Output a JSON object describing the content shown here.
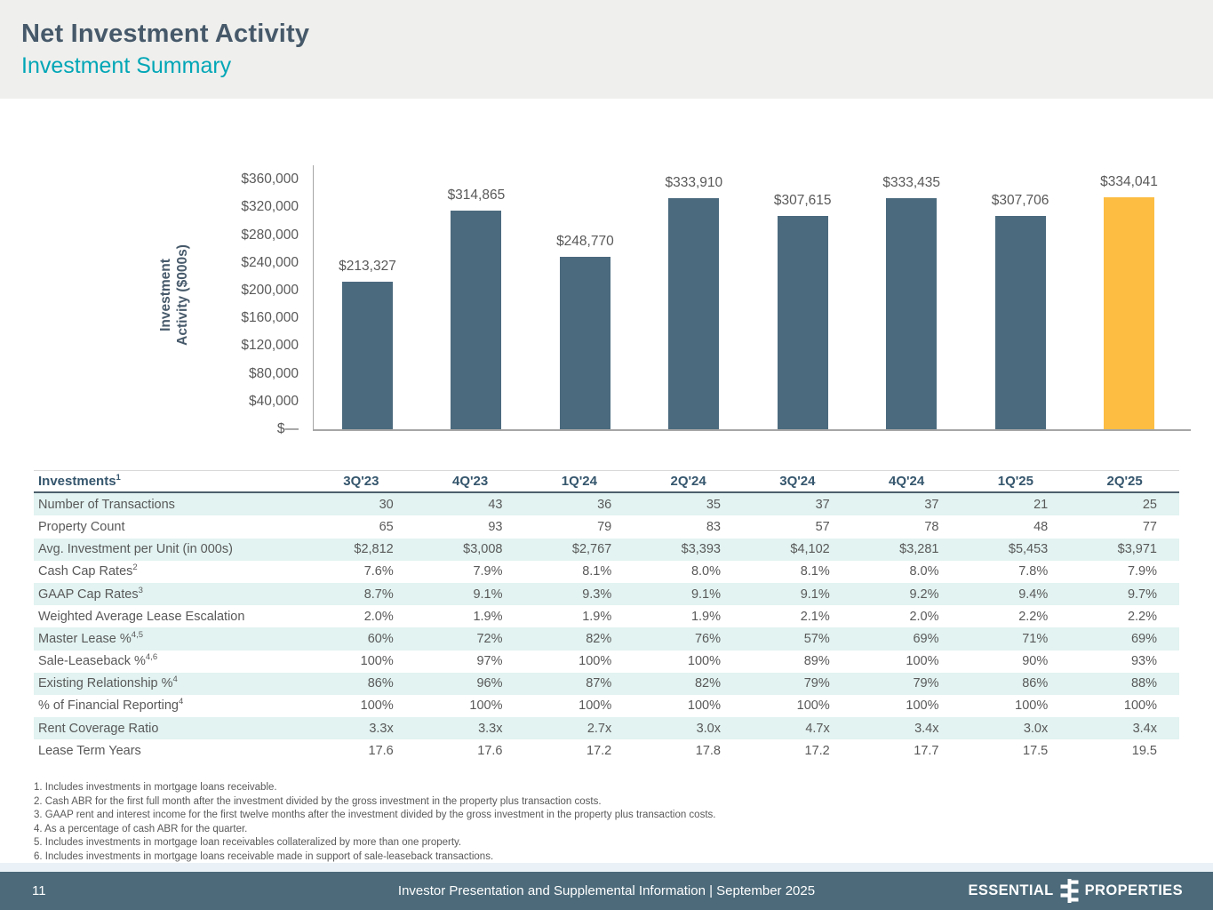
{
  "page": {
    "title": "Net Investment Activity",
    "subtitle": "Investment Summary",
    "page_number": "11",
    "footer_text": "Investor Presentation and Supplemental Information |  September 2025",
    "logo_left": "ESSENTIAL",
    "logo_right": "PROPERTIES"
  },
  "chart_data": {
    "type": "bar",
    "title": "",
    "xlabel": "",
    "ylabel": "Investment\nActivity ($000s)",
    "categories": [
      "3Q'23",
      "4Q'23",
      "1Q'24",
      "2Q'24",
      "3Q'24",
      "4Q'24",
      "1Q'25",
      "2Q'25"
    ],
    "values": [
      213327,
      314865,
      248770,
      333910,
      307615,
      333435,
      307706,
      334041
    ],
    "data_labels": [
      "$213,327",
      "$314,865",
      "$248,770",
      "$333,910",
      "$307,615",
      "$333,435",
      "$307,706",
      "$334,041"
    ],
    "highlight_index": 7,
    "ylim": [
      0,
      360000
    ],
    "ytick_step": 40000,
    "ytick_labels": [
      "$—",
      "$40,000",
      "$80,000",
      "$120,000",
      "$160,000",
      "$200,000",
      "$240,000",
      "$280,000",
      "$320,000",
      "$360,000"
    ],
    "bar_color": "#4b6a7e",
    "highlight_color": "#fcbd42",
    "grid": false,
    "legend": false
  },
  "table": {
    "header_label": "Investments",
    "header_sup": "1",
    "columns": [
      "3Q'23",
      "4Q'23",
      "1Q'24",
      "2Q'24",
      "3Q'24",
      "4Q'24",
      "1Q'25",
      "2Q'25"
    ],
    "rows": [
      {
        "label": "Number of Transactions",
        "sup": "",
        "values": [
          "30",
          "43",
          "36",
          "35",
          "37",
          "37",
          "21",
          "25"
        ]
      },
      {
        "label": "Property Count",
        "sup": "",
        "values": [
          "65",
          "93",
          "79",
          "83",
          "57",
          "78",
          "48",
          "77"
        ]
      },
      {
        "label": "Avg. Investment per Unit (in 000s)",
        "sup": "",
        "values": [
          "$2,812",
          "$3,008",
          "$2,767",
          "$3,393",
          "$4,102",
          "$3,281",
          "$5,453",
          "$3,971"
        ]
      },
      {
        "label": "Cash Cap Rates",
        "sup": "2",
        "values": [
          "7.6%",
          "7.9%",
          "8.1%",
          "8.0%",
          "8.1%",
          "8.0%",
          "7.8%",
          "7.9%"
        ]
      },
      {
        "label": "GAAP Cap Rates",
        "sup": "3",
        "values": [
          "8.7%",
          "9.1%",
          "9.3%",
          "9.1%",
          "9.1%",
          "9.2%",
          "9.4%",
          "9.7%"
        ]
      },
      {
        "label": "Weighted Average Lease Escalation",
        "sup": "",
        "values": [
          "2.0%",
          "1.9%",
          "1.9%",
          "1.9%",
          "2.1%",
          "2.0%",
          "2.2%",
          "2.2%"
        ]
      },
      {
        "label": "Master Lease %",
        "sup": "4,5",
        "values": [
          "60%",
          "72%",
          "82%",
          "76%",
          "57%",
          "69%",
          "71%",
          "69%"
        ]
      },
      {
        "label": "Sale-Leaseback %",
        "sup": "4,6",
        "values": [
          "100%",
          "97%",
          "100%",
          "100%",
          "89%",
          "100%",
          "90%",
          "93%"
        ]
      },
      {
        "label": "Existing Relationship %",
        "sup": "4",
        "values": [
          "86%",
          "96%",
          "87%",
          "82%",
          "79%",
          "79%",
          "86%",
          "88%"
        ]
      },
      {
        "label": "% of Financial Reporting",
        "sup": "4",
        "values": [
          "100%",
          "100%",
          "100%",
          "100%",
          "100%",
          "100%",
          "100%",
          "100%"
        ]
      },
      {
        "label": "Rent Coverage Ratio",
        "sup": "",
        "values": [
          "3.3x",
          "3.3x",
          "2.7x",
          "3.0x",
          "4.7x",
          "3.4x",
          "3.0x",
          "3.4x"
        ]
      },
      {
        "label": "Lease Term Years",
        "sup": "",
        "values": [
          "17.6",
          "17.6",
          "17.2",
          "17.8",
          "17.2",
          "17.7",
          "17.5",
          "19.5"
        ]
      }
    ]
  },
  "footnotes": [
    "1. Includes investments in mortgage loans receivable.",
    "2. Cash ABR for the first full month after the investment divided by the gross investment in the property plus transaction costs.",
    "3. GAAP rent and interest income for the first twelve months after the investment divided by the gross investment in the property plus transaction costs.",
    "4. As a percentage of cash ABR for the quarter.",
    "5. Includes investments in mortgage loan receivables collateralized by more than one property.",
    "6. Includes investments in mortgage loans receivable made in support of sale-leaseback transactions."
  ],
  "colors": {
    "header_band": "#efefed",
    "title": "#46596a",
    "subtitle_teal": "#00a6b6",
    "bar_blue": "#4b6a7e",
    "bar_gold": "#fcbd42",
    "table_alt_row": "#e2f3f1",
    "table_header_text": "#35566d",
    "body_text": "#595959",
    "footer_bar": "#4c6a7a"
  }
}
